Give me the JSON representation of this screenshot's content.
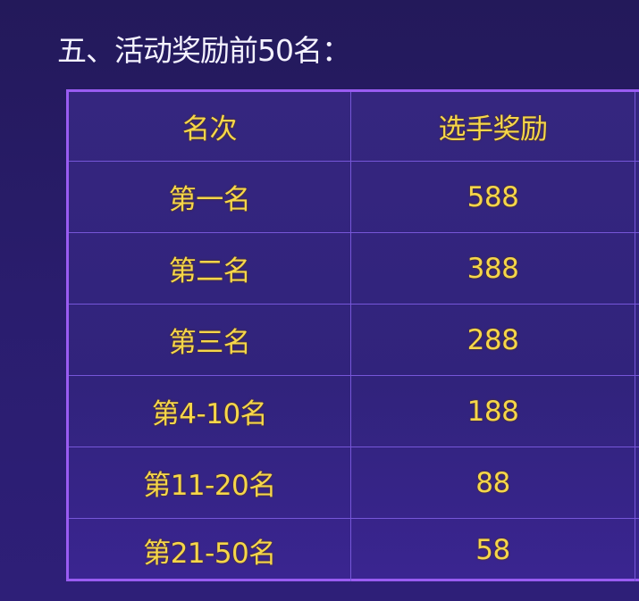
{
  "title": "五、活动奖励前50名：",
  "table": {
    "headers": [
      "名次",
      "选手奖励"
    ],
    "rows": [
      [
        "第一名",
        "588"
      ],
      [
        "第二名",
        "388"
      ],
      [
        "第三名",
        "288"
      ],
      [
        "第4-10名",
        "188"
      ],
      [
        "第11-20名",
        "88"
      ],
      [
        "第21-50名",
        "58"
      ]
    ]
  },
  "colors": {
    "text": "#f6d64a",
    "border": "#9a5cf2",
    "background": "#2a1d6e"
  }
}
